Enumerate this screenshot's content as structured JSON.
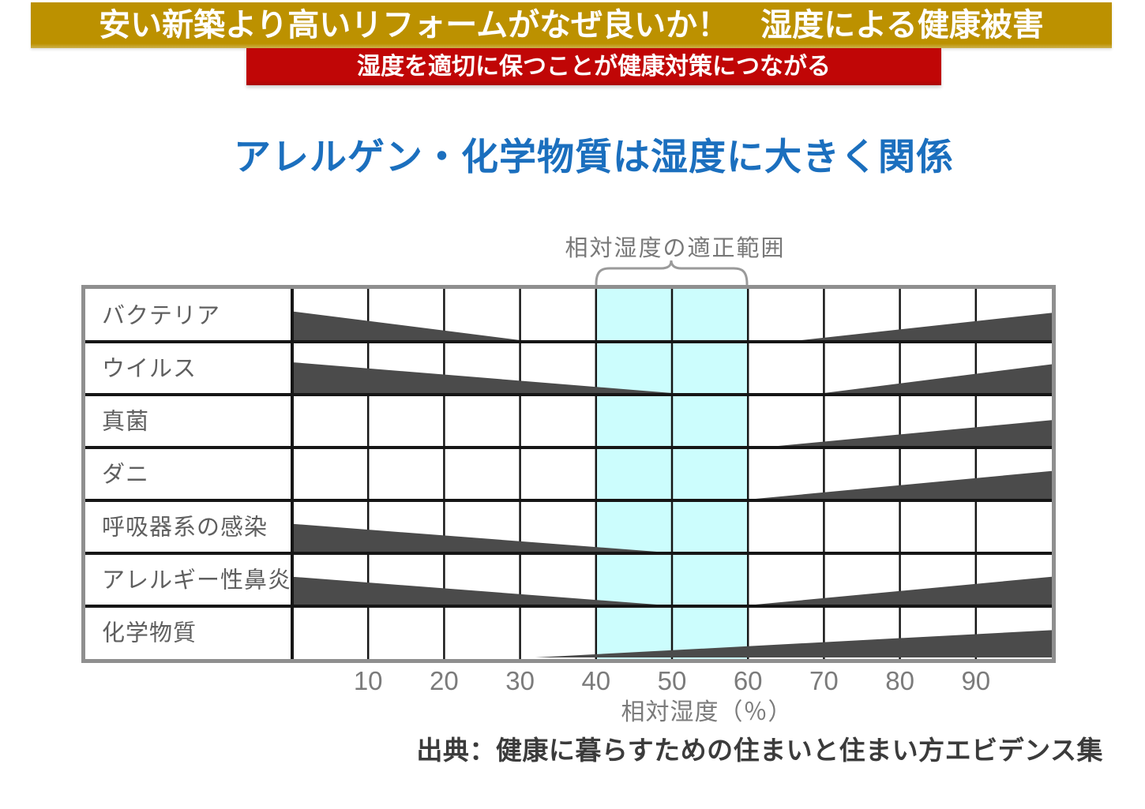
{
  "banners": {
    "top": {
      "text": "安い新築より高いリフォームがなぜ良いか！　湿度による健康被害",
      "bg": "#BC9100",
      "fg": "#FFFFFF"
    },
    "sub": {
      "text": "湿度を適切に保つことが健康対策につながる",
      "bg": "#C00606",
      "fg": "#FFFFFF"
    }
  },
  "title": {
    "text": "アレルゲン・化学物質は湿度に大きく関係",
    "color": "#1B6FBE"
  },
  "chart_data": {
    "type": "area",
    "optimal_range": {
      "label": "相対湿度の適正範囲",
      "min": 40,
      "max": 60
    },
    "x_axis": {
      "label": "相対湿度（％）",
      "min": 0,
      "max": 100,
      "ticks": [
        10,
        20,
        30,
        40,
        50,
        60,
        70,
        80,
        90
      ]
    },
    "rows": [
      {
        "label": "バクテリア",
        "zones": [
          {
            "trend": "decreasing",
            "from": 0,
            "to": 30,
            "height": 0.58
          },
          {
            "trend": "increasing",
            "from": 67,
            "to": 100,
            "height": 0.55
          }
        ]
      },
      {
        "label": "ウイルス",
        "zones": [
          {
            "trend": "decreasing",
            "from": 0,
            "to": 50,
            "height": 0.62
          },
          {
            "trend": "increasing",
            "from": 70,
            "to": 100,
            "height": 0.58
          }
        ]
      },
      {
        "label": "真菌",
        "zones": [
          {
            "trend": "increasing",
            "from": 64,
            "to": 100,
            "height": 0.52
          }
        ]
      },
      {
        "label": "ダニ",
        "zones": [
          {
            "trend": "increasing",
            "from": 61,
            "to": 100,
            "height": 0.56
          }
        ]
      },
      {
        "label": "呼吸器系の感染",
        "zones": [
          {
            "trend": "decreasing",
            "from": 0,
            "to": 48,
            "height": 0.56
          }
        ]
      },
      {
        "label": "アレルギー性鼻炎",
        "zones": [
          {
            "trend": "decreasing",
            "from": 0,
            "to": 48,
            "height": 0.56
          },
          {
            "trend": "increasing",
            "from": 61,
            "to": 100,
            "height": 0.56
          }
        ]
      },
      {
        "label": "化学物質",
        "zones": [
          {
            "trend": "increasing",
            "from": 32,
            "to": 100,
            "height": 0.55
          }
        ]
      }
    ],
    "colors": {
      "wedge": "#4B4B4B",
      "highlight": "#CCFDFD",
      "grid": "#161616",
      "border": "#8F8F8F",
      "row_label": "#5F5F5F",
      "tick": "#7B7B7B",
      "brace": "#9A9A9A"
    }
  },
  "source": {
    "text": "出典：健康に暮らすための住まいと住まい方エビデンス集"
  }
}
